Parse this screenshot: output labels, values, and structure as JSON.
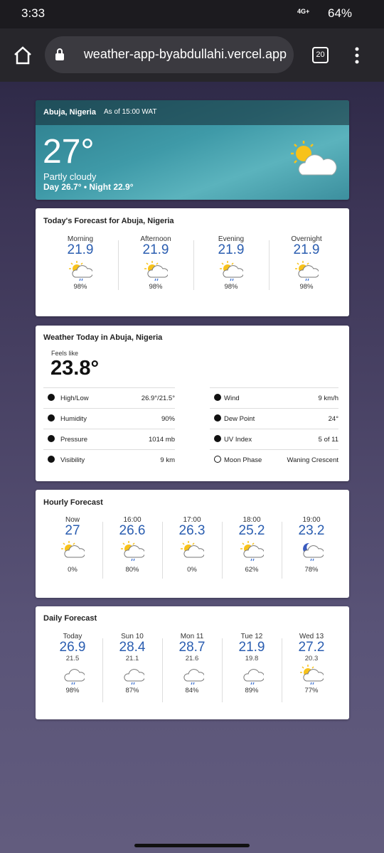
{
  "status": {
    "time": "3:33",
    "network": "4G+",
    "battery": "64%"
  },
  "browser": {
    "url": "weather-app-byabdullahi.vercel.app",
    "tabs": "20"
  },
  "current": {
    "location": "Abuja, Nigeria",
    "as_of": "As of 15:00 WAT",
    "temperature": "27°",
    "condition": "Partly cloudy",
    "day_night": "Day 26.7° • Night 22.9°"
  },
  "today": {
    "title": "Today's Forecast for Abuja, Nigeria",
    "periods": [
      {
        "label": "Morning",
        "temp": "21.9",
        "precip": "98%"
      },
      {
        "label": "Afternoon",
        "temp": "21.9",
        "precip": "98%"
      },
      {
        "label": "Evening",
        "temp": "21.9",
        "precip": "98%"
      },
      {
        "label": "Overnight",
        "temp": "21.9",
        "precip": "98%"
      }
    ]
  },
  "details": {
    "title": "Weather Today in Abuja, Nigeria",
    "feels_like_label": "Feels like",
    "feels_like": "23.8°",
    "rows": [
      {
        "label": "High/Low",
        "value": "26.9°/21.5°"
      },
      {
        "label": "Wind",
        "value": "9 km/h"
      },
      {
        "label": "Humidity",
        "value": "90%"
      },
      {
        "label": "Dew Point",
        "value": "24°"
      },
      {
        "label": "Pressure",
        "value": "1014 mb"
      },
      {
        "label": "UV Index",
        "value": "5 of 11"
      },
      {
        "label": "Visibility",
        "value": "9 km"
      },
      {
        "label": "Moon Phase",
        "value": "Waning Crescent"
      }
    ]
  },
  "hourly": {
    "title": "Hourly Forecast",
    "items": [
      {
        "time": "Now",
        "temp": "27",
        "precip": "0%"
      },
      {
        "time": "16:00",
        "temp": "26.6",
        "precip": "80%"
      },
      {
        "time": "17:00",
        "temp": "26.3",
        "precip": "0%"
      },
      {
        "time": "18:00",
        "temp": "25.2",
        "precip": "62%"
      },
      {
        "time": "19:00",
        "temp": "23.2",
        "precip": "78%"
      }
    ]
  },
  "daily": {
    "title": "Daily Forecast",
    "items": [
      {
        "day": "Today",
        "high": "26.9",
        "low": "21.5",
        "precip": "98%"
      },
      {
        "day": "Sun 10",
        "high": "28.4",
        "low": "21.1",
        "precip": "87%"
      },
      {
        "day": "Mon 11",
        "high": "28.7",
        "low": "21.6",
        "precip": "84%"
      },
      {
        "day": "Tue 12",
        "high": "21.9",
        "low": "19.8",
        "precip": "89%"
      },
      {
        "day": "Wed 13",
        "high": "27.2",
        "low": "20.3",
        "precip": "77%"
      }
    ]
  }
}
